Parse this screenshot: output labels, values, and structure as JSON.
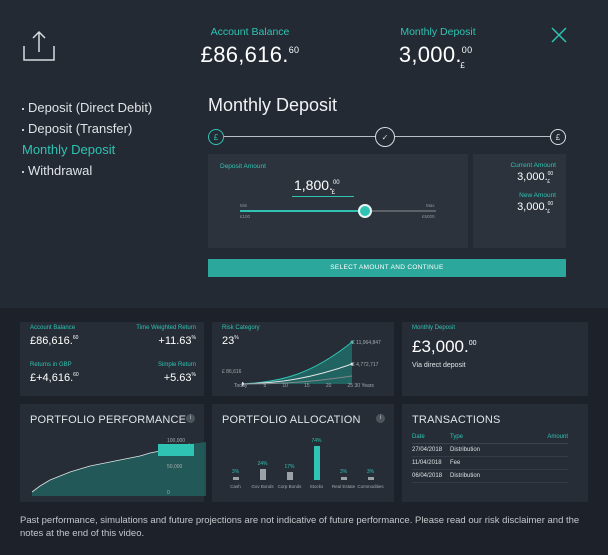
{
  "header": {
    "balance_label": "Account Balance",
    "balance_main": "£86,616.",
    "balance_pence": "60",
    "deposit_label": "Monthly Deposit",
    "deposit_main": "3,000.",
    "deposit_pence": "00",
    "deposit_currency": "£"
  },
  "menu": {
    "items": [
      {
        "label": "Deposit (Direct Debit)"
      },
      {
        "label": "Deposit (Transfer)"
      },
      {
        "label": "Monthly Deposit"
      },
      {
        "label": "Withdrawal"
      }
    ]
  },
  "panel": {
    "title": "Monthly Deposit",
    "step1": "£",
    "step2": "✓",
    "step3": "£",
    "deposit_amount_label": "Deposit Amount",
    "amount_main": "1,800.",
    "amount_pence": "00",
    "amount_currency": "£",
    "slider_min_top": "Min",
    "slider_min_bottom": "£100",
    "slider_max_top": "Max",
    "slider_max_bottom": "£5000",
    "slider_level": 0.64,
    "current_amount_label": "Current Amount",
    "current_amount_main": "3,000.",
    "current_amount_pence": "00",
    "current_amount_currency": "£",
    "new_amount_label": "New Amount",
    "new_amount_main": "3,000.",
    "new_amount_pence": "00",
    "new_amount_currency": "£",
    "cta_label": "SELECT AMOUNT AND CONTINUE"
  },
  "stats": {
    "account_balance_label": "Account Balance",
    "account_balance_main": "£86,616.",
    "account_balance_pence": "60",
    "twr_label": "Time Weighted Return",
    "twr_main": "+11.63",
    "twr_unit": "%",
    "returns_label": "Returns in GBP",
    "returns_main": "£+4,616.",
    "returns_pence": "60",
    "simple_label": "Simple Return",
    "simple_main": "+5.63",
    "simple_unit": "%"
  },
  "risk": {
    "label": "Risk Category",
    "value": "23",
    "unit": "%",
    "chart_labels": [
      "£ 11,964,847",
      "£ 4,772,717",
      "£ 86,616"
    ],
    "x_ticks": [
      "Today",
      "5",
      "10",
      "15",
      "20",
      "25 30 Years"
    ]
  },
  "monthly_tile": {
    "label": "Monthly Deposit",
    "main": "£3,000.",
    "pence": "00",
    "sub": "Via direct deposit"
  },
  "performance": {
    "title": "PORTFOLIO PERFORMANCE",
    "y_ticks": [
      "100,000",
      "50,000",
      "0"
    ]
  },
  "allocation": {
    "title": "PORTFOLIO ALLOCATION",
    "categories": [
      "Cash",
      "Gov Bonds",
      "Corp Bonds",
      "Stocks",
      "Real Estate",
      "Commodities"
    ],
    "values": [
      3,
      24,
      17,
      74,
      3,
      3
    ],
    "value_unit": "%"
  },
  "transactions": {
    "title": "TRANSACTIONS",
    "headers": {
      "date": "Date",
      "type": "Type",
      "amount": "Amount"
    },
    "rows": [
      {
        "date": "27/04/2018",
        "type": "Distribution"
      },
      {
        "date": "11/04/2018",
        "type": "Fee"
      },
      {
        "date": "06/04/2018",
        "type": "Distribution"
      }
    ]
  },
  "footer": {
    "text": "Past performance, simulations and future projections are not indicative of future performance. Please read our risk disclaimer and the notes at the end of this video."
  }
}
